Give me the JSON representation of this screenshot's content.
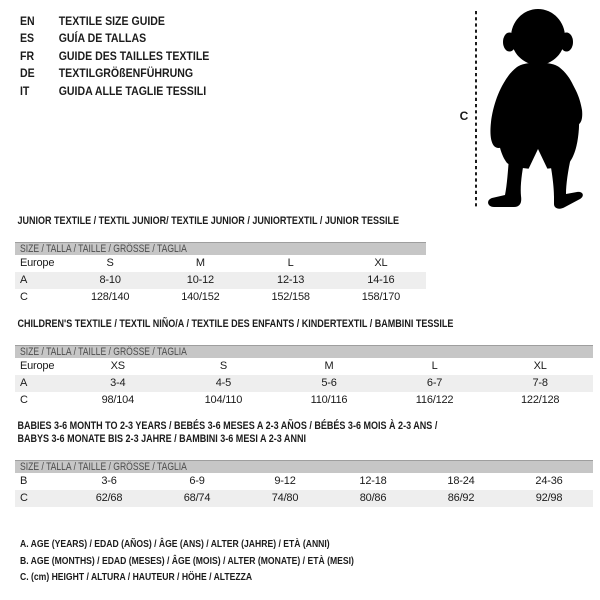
{
  "colors": {
    "text": "#1b1b1b",
    "bar_bg": "#c6c6c6",
    "bar_border": "#9e9e9e",
    "bar_text": "#4c4c4c",
    "row_shaded": "#eeeeee",
    "silhouette": "#000000"
  },
  "language_header": {
    "items": [
      {
        "code": "EN",
        "label": "TEXTILE SIZE GUIDE"
      },
      {
        "code": "ES",
        "label": "GUÍA DE TALLAS"
      },
      {
        "code": "FR",
        "label": "GUIDE DES TAILLES TEXTILE"
      },
      {
        "code": "DE",
        "label": "TEXTILGRÖßENFÜHRUNG"
      },
      {
        "code": "IT",
        "label": "GUIDA ALLE TAGLIE TESSILI"
      }
    ]
  },
  "figure": {
    "icon": "toddler-silhouette",
    "measure_label": "C"
  },
  "tables": [
    {
      "id": "junior",
      "title_lines": [
        "JUNIOR TEXTILE / TEXTIL JUNIOR/ TEXTILE JUNIOR / JUNIORTEXTIL / JUNIOR TESSILE"
      ],
      "size_header": "SIZE / TALLA / TAILLE / GRÖSSE / TAGLIA",
      "region_label": "Europe",
      "columns": [
        "S",
        "M",
        "L",
        "XL"
      ],
      "rows": [
        {
          "label": "A",
          "shaded": true,
          "values": [
            "8-10",
            "10-12",
            "12-13",
            "14-16"
          ]
        },
        {
          "label": "C",
          "shaded": false,
          "values": [
            "128/140",
            "140/152",
            "152/158",
            "158/170"
          ]
        }
      ]
    },
    {
      "id": "children",
      "title_lines": [
        "CHILDREN'S TEXTILE / TEXTIL NIÑO/A / TEXTILE DES ENFANTS / KINDERTEXTIL / BAMBINI TESSILE"
      ],
      "size_header": "SIZE / TALLA / TAILLE / GRÖSSE / TAGLIA",
      "region_label": "Europe",
      "columns": [
        "XS",
        "S",
        "M",
        "L",
        "XL"
      ],
      "rows": [
        {
          "label": "A",
          "shaded": true,
          "values": [
            "3-4",
            "4-5",
            "5-6",
            "6-7",
            "7-8"
          ]
        },
        {
          "label": "C",
          "shaded": false,
          "values": [
            "98/104",
            "104/110",
            "110/116",
            "116/122",
            "122/128"
          ]
        }
      ]
    },
    {
      "id": "babies",
      "title_lines": [
        "BABIES 3-6 MONTH TO 2-3 YEARS / BEBÉS 3-6 MESES A 2-3 AÑOS / BÉBÉS 3-6 MOIS À 2-3 ANS /",
        "BABYS 3-6 MONATE BIS 2-3 JAHRE / BAMBINI 3-6 MESI A 2-3 ANNI"
      ],
      "size_header": "SIZE / TALLA / TAILLE / GRÖSSE / TAGLIA",
      "region_label": null,
      "columns": null,
      "rows": [
        {
          "label": "B",
          "shaded": false,
          "values": [
            "3-6",
            "6-9",
            "9-12",
            "12-18",
            "18-24",
            "24-36"
          ]
        },
        {
          "label": "C",
          "shaded": true,
          "values": [
            "62/68",
            "68/74",
            "74/80",
            "80/86",
            "86/92",
            "92/98"
          ]
        }
      ]
    }
  ],
  "legend": {
    "lines": [
      "A. AGE (YEARS) / EDAD (AÑOS) / ÂGE (ANS) / ALTER (JAHRE) / ETÀ (ANNI)",
      "B. AGE (MONTHS) / EDAD (MESES) / ÂGE (MOIS) / ALTER (MONATE) / ETÀ (MESI)",
      "C. (cm) HEIGHT / ALTURA / HAUTEUR / HÖHE / ALTEZZA"
    ]
  }
}
